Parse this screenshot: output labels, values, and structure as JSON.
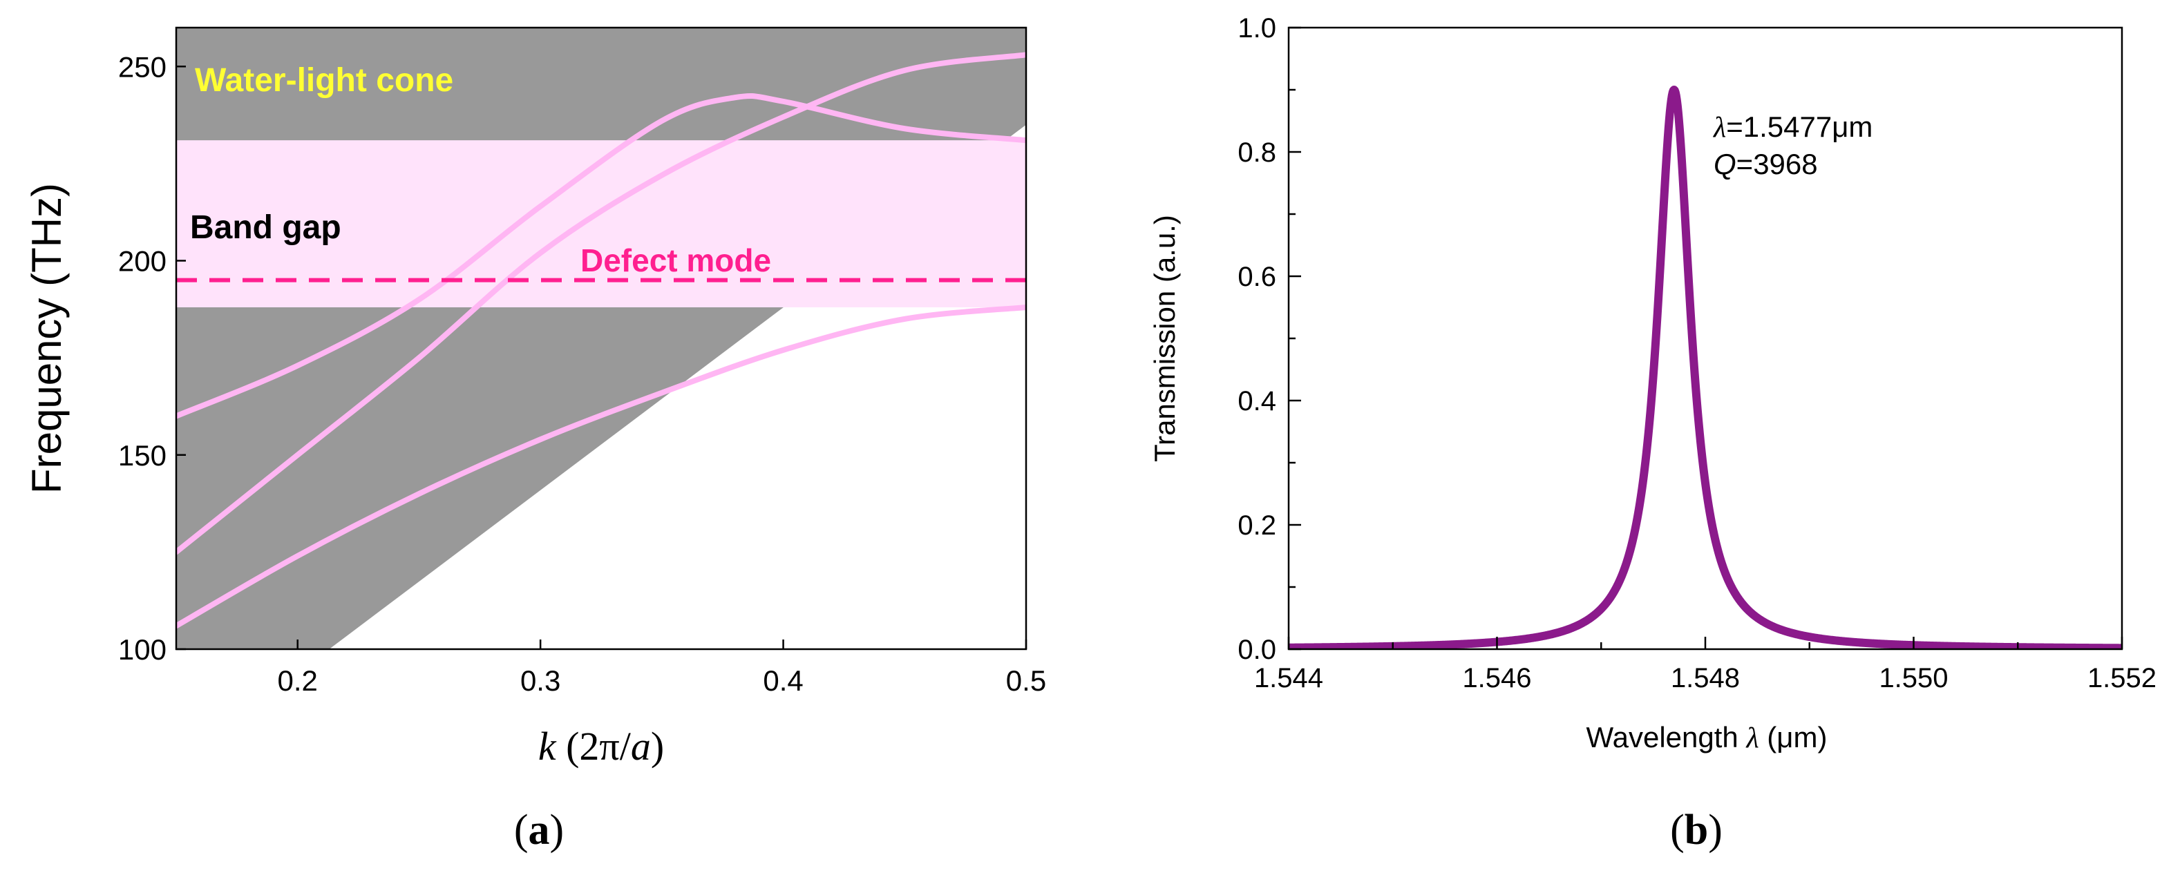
{
  "chart_data": [
    {
      "panel_label": "a",
      "type": "line",
      "xlabel": {
        "italic": "k",
        "rest": " (2π/",
        "italic2": "a",
        "close": ")"
      },
      "ylabel": "Frequency (THz)",
      "xlim": [
        0.15,
        0.5
      ],
      "ylim": [
        100,
        260
      ],
      "xticks": [
        "0.2",
        "0.3",
        "0.4",
        "0.5"
      ],
      "yticks": [
        "100",
        "150",
        "200",
        "250"
      ],
      "regions": {
        "light_cone": {
          "label": "Water-light cone",
          "color": "#999999",
          "label_color": "#ffff33",
          "boundary": [
            [
              0.213,
              100
            ],
            [
              0.5,
              235
            ]
          ]
        },
        "band_gap": {
          "label": "Band gap",
          "color": "#ffe3fb",
          "y_range": [
            188,
            231
          ]
        }
      },
      "defect_mode": {
        "label": "Defect mode",
        "y": 195,
        "color": "#ff1f8f"
      },
      "series_color": "#ffb6f3",
      "series": [
        {
          "x": [
            0.15,
            0.2,
            0.25,
            0.3,
            0.35,
            0.38,
            0.4,
            0.45,
            0.5
          ],
          "values": [
            160,
            173,
            190,
            214,
            236,
            242,
            241,
            234,
            231
          ]
        },
        {
          "x": [
            0.15,
            0.2,
            0.25,
            0.3,
            0.35,
            0.4,
            0.45,
            0.5
          ],
          "values": [
            125,
            150,
            175,
            202,
            222,
            237,
            249,
            253
          ]
        },
        {
          "x": [
            0.15,
            0.2,
            0.25,
            0.3,
            0.35,
            0.4,
            0.45,
            0.5
          ],
          "values": [
            106,
            124,
            140,
            154,
            166,
            177,
            185,
            188
          ]
        }
      ]
    },
    {
      "panel_label": "b",
      "type": "line",
      "xlabel": {
        "pre": "Wavelength ",
        "italic": "λ",
        "rest": " (μm)"
      },
      "ylabel": "Transmission (a.u.)",
      "xlim": [
        1.544,
        1.552
      ],
      "ylim": [
        0,
        1.0
      ],
      "xticks": [
        "1.544",
        "1.546",
        "1.548",
        "1.550",
        "1.552"
      ],
      "yticks": [
        "0.0",
        "0.2",
        "0.4",
        "0.6",
        "0.8",
        "1.0"
      ],
      "annotation": {
        "lambda_var": "λ",
        "lambda_value": "=1.5477μm",
        "q_var": "Q",
        "q_value": "=3968"
      },
      "series_color": "#8b1a8b",
      "peak": {
        "center": 1.5477,
        "height": 0.9,
        "hwhm": 0.000195
      }
    }
  ]
}
